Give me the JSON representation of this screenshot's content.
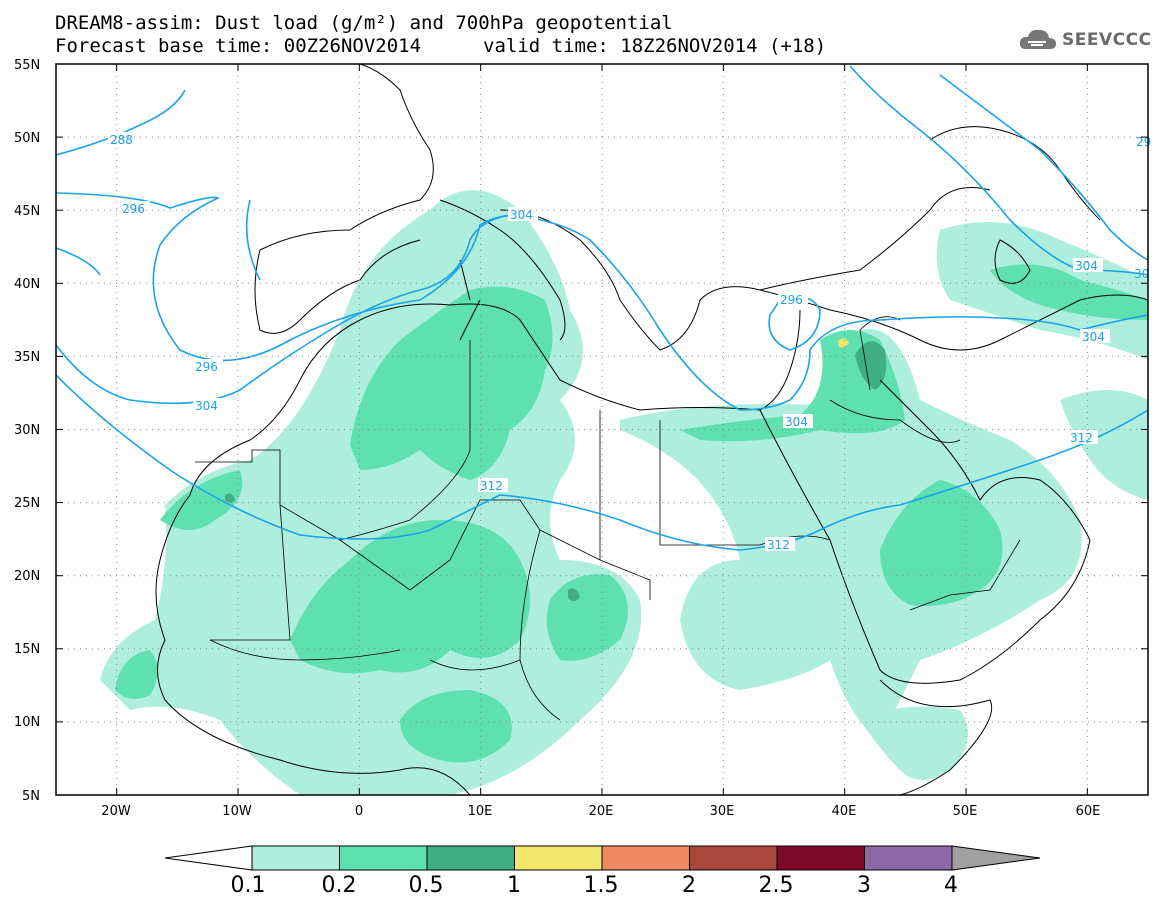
{
  "title": {
    "line1": "DREAM8-assim: Dust load (g/m²) and 700hPa geopotential",
    "line2a": "Forecast base time: 00Z26NOV2014",
    "line2b": "valid time: 18Z26NOV2014 (+18)"
  },
  "logo": {
    "icon": "cloud-icon",
    "text": "SEEVCCC"
  },
  "map": {
    "lon_range": [
      -25,
      65
    ],
    "lat_range": [
      5,
      55
    ],
    "lat_labels": [
      "55N",
      "50N",
      "45N",
      "40N",
      "35N",
      "30N",
      "25N",
      "20N",
      "15N",
      "10N",
      "5N"
    ],
    "lon_labels": [
      "20W",
      "10W",
      "0",
      "10E",
      "20E",
      "30E",
      "40E",
      "50E",
      "60E"
    ],
    "contour_color": "#1aa3e8",
    "contour_labels": [
      "288",
      "296",
      "304",
      "296",
      "304",
      "312",
      "312",
      "304",
      "296",
      "304",
      "312",
      "304",
      "30",
      "29"
    ]
  },
  "colorbar": {
    "labels": [
      "0.1",
      "0.2",
      "0.5",
      "1",
      "1.5",
      "2",
      "2.5",
      "3",
      "4"
    ],
    "colors": [
      "#aeeedd",
      "#5fe0b0",
      "#3fae84",
      "#f3e76b",
      "#ef8b64",
      "#a8473c",
      "#7f0a2c",
      "#8c6aa8"
    ],
    "under_color": "#ffffff",
    "over_color": "#a0a0a0"
  }
}
